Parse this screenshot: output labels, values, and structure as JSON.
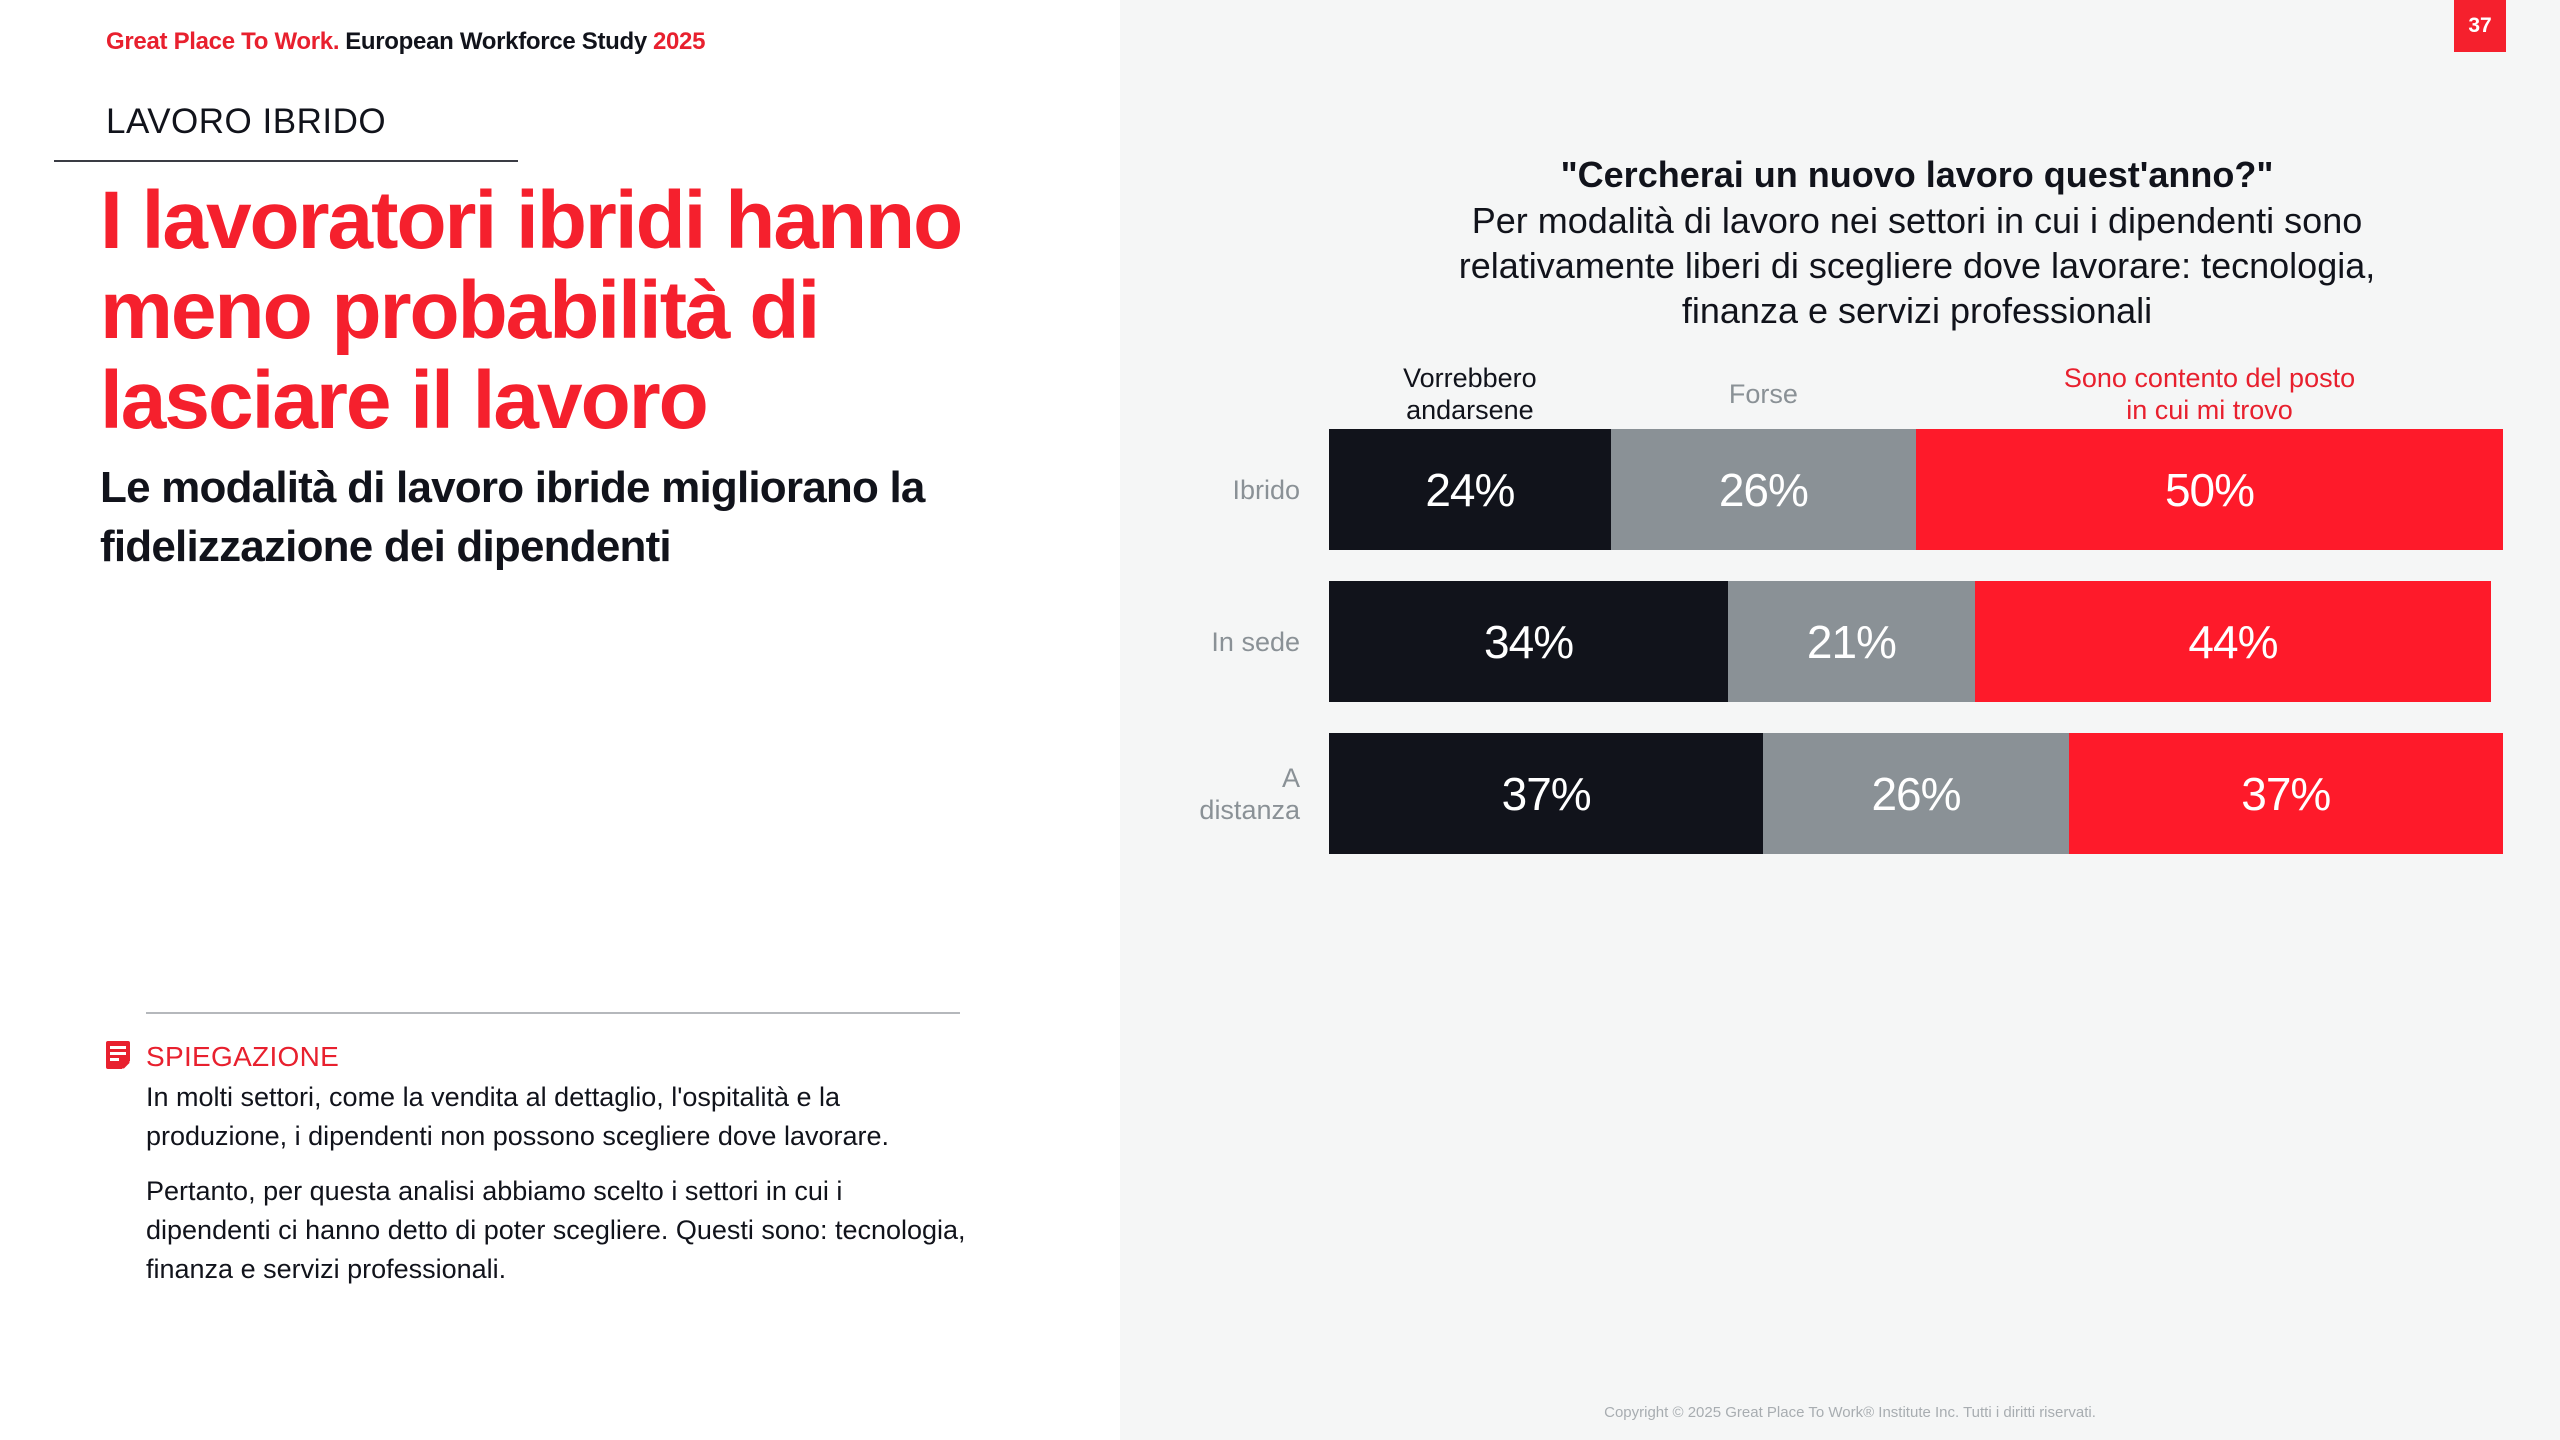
{
  "header": {
    "brand": "Great Place To Work.",
    "study": "European Workforce Study",
    "year": "2025",
    "page_number": "37"
  },
  "section_label": "LAVORO IBRIDO",
  "headline": "I lavoratori ibridi hanno meno probabilità di lasciare il lavoro",
  "subheadline": "Le modalità di lavoro ibride migliorano la fidelizzazione dei dipendenti",
  "explanation": {
    "icon": "note-icon",
    "title": "SPIEGAZIONE",
    "paragraphs": [
      "In molti settori, come la vendita al dettaglio, l'ospitalità e la produzione, i dipendenti non possono scegliere dove lavorare.",
      "Pertanto, per questa analisi abbiamo scelto i settori in cui i dipendenti ci hanno detto di poter scegliere. Questi sono: tecnologia, finanza e servizi professionali."
    ]
  },
  "copyright": "Copyright © 2025 Great Place To Work® Institute Inc. Tutti i diritti riservati.",
  "colors": {
    "accent": "#f5202d",
    "dark": "#11131b",
    "gray": "#8a9196",
    "red": "#fe1a2a"
  },
  "chart_data": {
    "type": "bar",
    "orientation": "horizontal",
    "stacked": true,
    "title": "\"Cercherai un nuovo lavoro quest'anno?\"",
    "subtitle": "Per modalità di lavoro nei settori in cui i dipendenti sono relativamente liberi di scegliere dove lavorare: tecnologia, finanza e servizi professionali",
    "categories": [
      "Ibrido",
      "In sede",
      "A distanza"
    ],
    "category_lines": [
      [
        "Ibrido"
      ],
      [
        "In sede"
      ],
      [
        "A",
        "distanza"
      ]
    ],
    "series": [
      {
        "name": "Vorrebbero andarsene",
        "name_lines": [
          "Vorrebbero",
          "andarsene"
        ],
        "color": "#11131b",
        "values": [
          24,
          34,
          37
        ],
        "labels": [
          "24%",
          "34%",
          "37%"
        ]
      },
      {
        "name": "Forse",
        "name_lines": [
          "Forse"
        ],
        "color": "#8a9196",
        "values": [
          26,
          21,
          26
        ],
        "labels": [
          "26%",
          "21%",
          "26%"
        ]
      },
      {
        "name": "Sono contento del posto in cui mi trovo",
        "name_lines": [
          "Sono contento del posto",
          "in cui mi trovo"
        ],
        "color": "#fe1a2a",
        "values": [
          50,
          44,
          37
        ],
        "labels": [
          "50%",
          "44%",
          "37%"
        ]
      }
    ],
    "xlim": [
      0,
      100
    ],
    "unit": "%",
    "grid": false,
    "legend": "top"
  }
}
